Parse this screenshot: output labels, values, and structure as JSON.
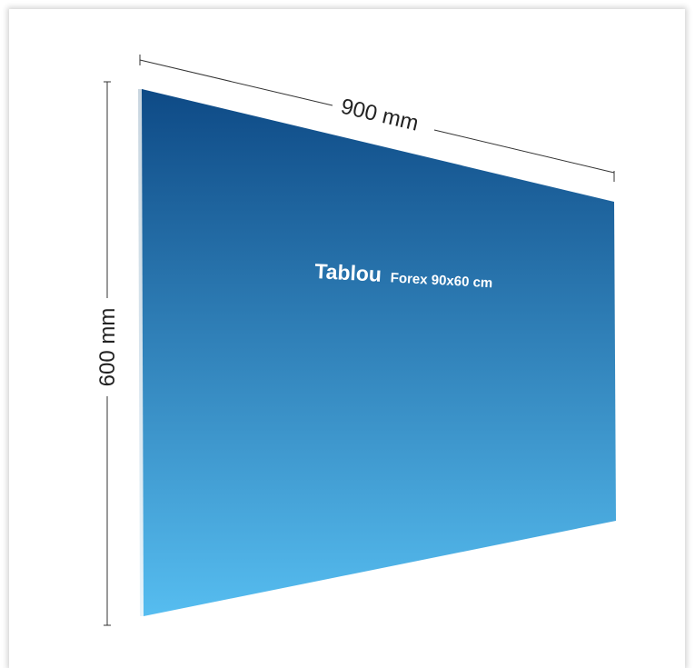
{
  "product": {
    "title_main": "Tablou",
    "title_sub": "Forex 90x60 cm"
  },
  "dimensions": {
    "width_label": "900 mm",
    "height_label": "600 mm"
  },
  "colors": {
    "panel_top": "#0e4a86",
    "panel_bottom": "#56bdf0",
    "dimension_line": "#333333"
  }
}
